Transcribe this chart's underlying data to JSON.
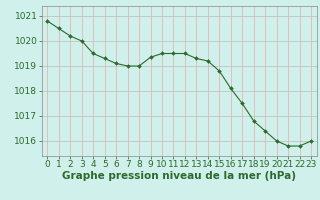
{
  "hours": [
    0,
    1,
    2,
    3,
    4,
    5,
    6,
    7,
    8,
    9,
    10,
    11,
    12,
    13,
    14,
    15,
    16,
    17,
    18,
    19,
    20,
    21,
    22,
    23
  ],
  "pressure": [
    1020.8,
    1020.5,
    1020.2,
    1020.0,
    1019.5,
    1019.3,
    1019.1,
    1019.0,
    1019.0,
    1019.35,
    1019.5,
    1019.5,
    1019.5,
    1019.3,
    1019.2,
    1018.8,
    1018.1,
    1017.5,
    1016.8,
    1016.4,
    1016.0,
    1015.8,
    1015.8,
    1016.0
  ],
  "ylim_min": 1015.4,
  "ylim_max": 1021.4,
  "yticks": [
    1016,
    1017,
    1018,
    1019,
    1020,
    1021
  ],
  "line_color": "#2d6a2d",
  "marker_color": "#2d6a2d",
  "bg_color": "#cff0eb",
  "grid_color_h": "#bbbbbb",
  "grid_color_v": "#e8aaaa",
  "xlabel": "Graphe pression niveau de la mer (hPa)",
  "xlabel_color": "#2d6a2d",
  "tick_color": "#2d6a2d",
  "axis_color": "#888888",
  "label_fontsize": 6.5,
  "xlabel_fontsize": 7.5
}
